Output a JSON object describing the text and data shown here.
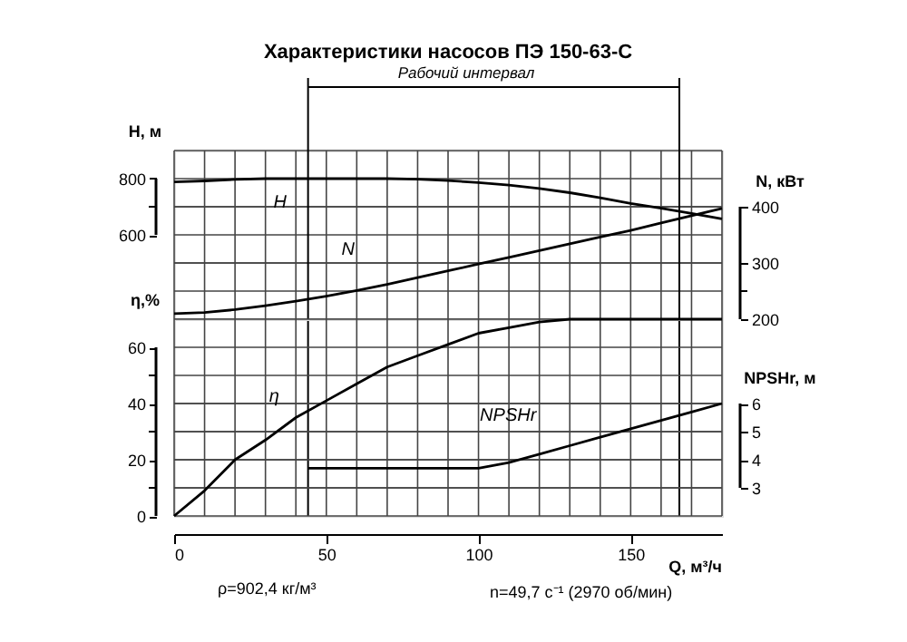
{
  "chart_data": [
    {
      "type": "line",
      "title": "Характеристики насосов ПЭ 150-63-С",
      "ylabel": "H, м",
      "y2label": "N, кВт",
      "x": [
        0,
        10,
        20,
        30,
        40,
        50,
        60,
        70,
        80,
        90,
        100,
        110,
        120,
        130,
        140,
        150,
        160,
        170,
        180
      ],
      "xlim": [
        0,
        180
      ],
      "tick_labels": "y",
      "xticks": [
        0,
        {
          "value": 10,
          "label": null
        },
        {
          "value": 20,
          "label": null
        },
        {
          "value": 30,
          "label": null
        },
        {
          "value": 40,
          "label": null
        },
        50,
        {
          "value": 60,
          "label": null
        },
        {
          "value": 70,
          "label": null
        },
        {
          "value": 80,
          "label": null
        },
        {
          "value": 90,
          "label": null
        },
        100,
        {
          "value": 110,
          "label": null
        },
        {
          "value": 120,
          "label": null
        },
        {
          "value": 130,
          "label": null
        },
        {
          "value": 140,
          "label": null
        },
        150,
        {
          "value": 160,
          "label": null
        },
        {
          "value": 170,
          "label": null
        },
        {
          "value": 180,
          "label": null
        }
      ],
      "ylim": [
        300,
        900
      ],
      "yticks": [
        {
          "value": 500,
          "label": null
        },
        600,
        {
          "value": 700,
          "label": null
        },
        800,
        {
          "value": 900,
          "label": null
        }
      ],
      "y2lim": [
        200,
        500
      ],
      "y2ticks": [
        200,
        {
          "value": 250,
          "label": null
        },
        300,
        400
      ],
      "grid": true,
      "series": [
        {
          "name": "H",
          "color": "#000000",
          "values": [
            788,
            792,
            797,
            800,
            800,
            800,
            800,
            800,
            798,
            793,
            786,
            777,
            765,
            750,
            732,
            712,
            695,
            676,
            657
          ]
        },
        {
          "name": "N",
          "color": "#000000",
          "axis": "y2",
          "values": [
            210,
            212,
            217,
            224,
            232,
            241,
            251,
            262,
            274,
            286,
            298,
            310,
            322,
            334,
            346,
            358,
            371,
            384,
            397
          ]
        }
      ],
      "ref_lines": [
        {
          "axis": "x",
          "value": 44
        },
        {
          "axis": "x",
          "value": 166
        }
      ],
      "annotations": [
        "Рабочий интервал"
      ]
    },
    {
      "type": "line",
      "xlabel": "Q, м³/ч",
      "ylabel": "η,%",
      "y2label": "NPSHr, м",
      "x": [
        0,
        10,
        20,
        30,
        40,
        50,
        60,
        70,
        80,
        90,
        100,
        110,
        120,
        130,
        140,
        150,
        160,
        170,
        180
      ],
      "xlim": [
        0,
        180
      ],
      "xticks": [
        0,
        {
          "value": 10,
          "label": null
        },
        {
          "value": 20,
          "label": null
        },
        {
          "value": 30,
          "label": null
        },
        {
          "value": 40,
          "label": null
        },
        50,
        {
          "value": 60,
          "label": null
        },
        {
          "value": 70,
          "label": null
        },
        {
          "value": 80,
          "label": null
        },
        {
          "value": 90,
          "label": null
        },
        100,
        {
          "value": 110,
          "label": null
        },
        {
          "value": 120,
          "label": null
        },
        {
          "value": 130,
          "label": null
        },
        {
          "value": 140,
          "label": null
        },
        150,
        {
          "value": 160,
          "label": null
        },
        {
          "value": 170,
          "label": null
        },
        {
          "value": 180,
          "label": null
        }
      ],
      "ylim": [
        0,
        70
      ],
      "yticks": [
        0,
        {
          "value": 10,
          "label": null
        },
        20,
        {
          "value": 30,
          "label": null
        },
        40,
        {
          "value": 50,
          "label": null
        },
        60,
        {
          "value": 70,
          "label": null
        }
      ],
      "y2lim": [
        2,
        9
      ],
      "y2ticks": [
        3,
        4,
        5,
        6
      ],
      "grid": true,
      "series": [
        {
          "name": "η",
          "color": "#000000",
          "values": [
            0,
            9,
            20,
            27,
            35,
            41,
            47,
            53,
            57,
            61,
            65,
            67,
            69,
            70,
            70,
            70,
            70,
            70,
            70
          ]
        },
        {
          "name": "NPSHr",
          "color": "#000000",
          "axis": "y2",
          "x": [
            44,
            60,
            80,
            95,
            100,
            110,
            120,
            130,
            140,
            150,
            160,
            170,
            180
          ],
          "values": [
            3.7,
            3.7,
            3.7,
            3.7,
            3.7,
            3.9,
            4.2,
            4.5,
            4.8,
            5.1,
            5.4,
            5.7,
            6.0
          ]
        }
      ],
      "annotations": [
        "ρ=902,4 кг/м³",
        "n=49,7 с⁻¹ (2970 об/мин)"
      ]
    }
  ]
}
